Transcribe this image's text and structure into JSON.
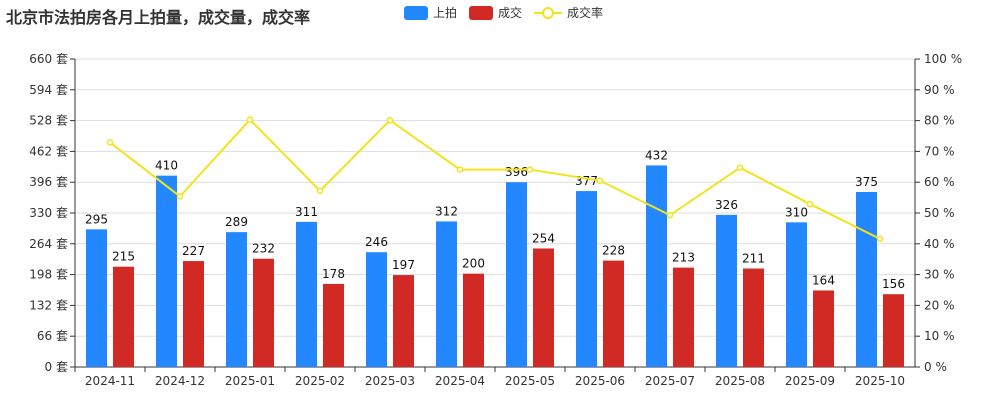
{
  "chart_data": {
    "type": "bar",
    "title": "北京市法拍房各月上拍量，成交量，成交率",
    "categories": [
      "2024-11",
      "2024-12",
      "2025-01",
      "2025-02",
      "2025-03",
      "2025-04",
      "2025-05",
      "2025-06",
      "2025-07",
      "2025-08",
      "2025-09",
      "2025-10"
    ],
    "series": [
      {
        "name": "上拍",
        "type": "bar",
        "axis": "left",
        "color": "#2388ff",
        "values": [
          295,
          410,
          289,
          311,
          246,
          312,
          396,
          377,
          432,
          326,
          310,
          375
        ]
      },
      {
        "name": "成交",
        "type": "bar",
        "axis": "left",
        "color": "#d12a24",
        "values": [
          215,
          227,
          232,
          178,
          197,
          200,
          254,
          228,
          213,
          211,
          164,
          156
        ]
      },
      {
        "name": "成交率",
        "type": "line",
        "axis": "right",
        "color": "#f2e31c",
        "values": [
          72.9,
          55.4,
          80.3,
          57.2,
          80.1,
          64.1,
          64.1,
          60.5,
          49.3,
          64.7,
          52.9,
          41.6
        ]
      }
    ],
    "y_left": {
      "range": [
        0,
        660
      ],
      "ticks": [
        0,
        66,
        132,
        198,
        264,
        330,
        396,
        462,
        528,
        594,
        660
      ],
      "unit": "套"
    },
    "y_right": {
      "range": [
        0,
        100
      ],
      "ticks": [
        0,
        10,
        20,
        30,
        40,
        50,
        60,
        70,
        80,
        90,
        100
      ],
      "unit": "%"
    },
    "grid": true,
    "legend": "top"
  }
}
